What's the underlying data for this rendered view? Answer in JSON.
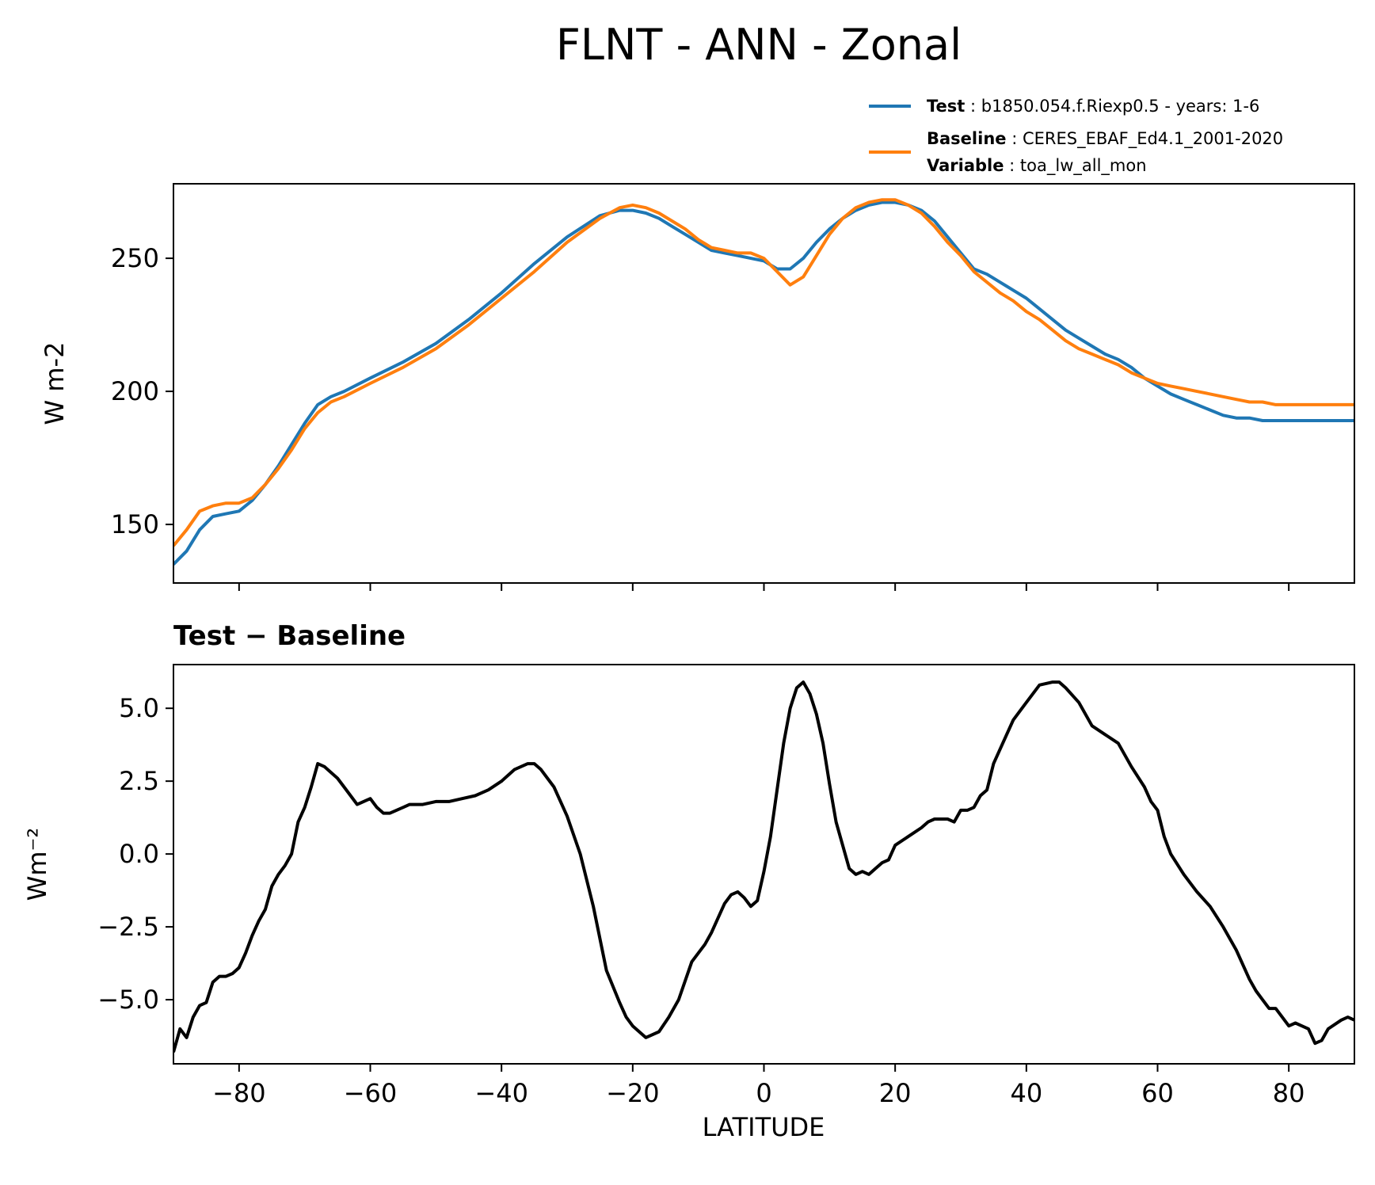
{
  "figure": {
    "title": "FLNT - ANN - Zonal"
  },
  "legend": {
    "test_key": "Test",
    "test_text": "b1850.054.f.Riexp0.5 - years: 1-6",
    "baseline_key": "Baseline",
    "baseline_text": "CERES_EBAF_Ed4.1_2001-2020",
    "variable_key": "Variable",
    "variable_text": "toa_lw_all_mon"
  },
  "chart_data": [
    {
      "type": "line",
      "panel": "top",
      "ylabel": "W m-2",
      "xlim": [
        -90,
        90
      ],
      "ylim": [
        128,
        278
      ],
      "yticks": [
        150,
        200,
        250
      ],
      "xticks": [
        -80,
        -60,
        -40,
        -20,
        0,
        20,
        40,
        60,
        80
      ],
      "legend_placement": "top-right, above axes",
      "series": [
        {
          "name": "Test",
          "color": "#1f77b4",
          "x": [
            -90,
            -88,
            -86,
            -84,
            -82,
            -80,
            -78,
            -76,
            -74,
            -72,
            -70,
            -68,
            -66,
            -64,
            -60,
            -55,
            -50,
            -45,
            -40,
            -35,
            -30,
            -25,
            -22,
            -20,
            -18,
            -16,
            -14,
            -12,
            -10,
            -8,
            -6,
            -4,
            -2,
            0,
            2,
            4,
            6,
            8,
            10,
            12,
            14,
            16,
            18,
            20,
            22,
            24,
            26,
            28,
            30,
            32,
            34,
            36,
            38,
            40,
            42,
            44,
            46,
            48,
            50,
            52,
            54,
            56,
            58,
            60,
            62,
            64,
            66,
            68,
            70,
            72,
            74,
            76,
            78,
            80,
            82,
            84,
            86,
            88,
            90
          ],
          "values": [
            135,
            140,
            148,
            153,
            154,
            155,
            159,
            165,
            172,
            180,
            188,
            195,
            198,
            200,
            205,
            211,
            218,
            227,
            237,
            248,
            258,
            266,
            268,
            268,
            267,
            265,
            262,
            259,
            256,
            253,
            252,
            251,
            250,
            249,
            246,
            246,
            250,
            256,
            261,
            265,
            268,
            270,
            271,
            271,
            270,
            268,
            264,
            258,
            252,
            246,
            244,
            241,
            238,
            235,
            231,
            227,
            223,
            220,
            217,
            214,
            212,
            209,
            205,
            202,
            199,
            197,
            195,
            193,
            191,
            190,
            190,
            189,
            189,
            189,
            189,
            189,
            189,
            189,
            189
          ]
        },
        {
          "name": "Baseline",
          "color": "#ff7f0e",
          "x": [
            -90,
            -88,
            -86,
            -84,
            -82,
            -80,
            -78,
            -76,
            -74,
            -72,
            -70,
            -68,
            -66,
            -64,
            -60,
            -55,
            -50,
            -45,
            -40,
            -35,
            -30,
            -25,
            -22,
            -20,
            -18,
            -16,
            -14,
            -12,
            -10,
            -8,
            -6,
            -4,
            -2,
            0,
            2,
            4,
            6,
            8,
            10,
            12,
            14,
            16,
            18,
            20,
            22,
            24,
            26,
            28,
            30,
            32,
            34,
            36,
            38,
            40,
            42,
            44,
            46,
            48,
            50,
            52,
            54,
            56,
            58,
            60,
            62,
            64,
            66,
            68,
            70,
            72,
            74,
            76,
            78,
            80,
            82,
            84,
            86,
            88,
            90
          ],
          "values": [
            142,
            148,
            155,
            157,
            158,
            158,
            160,
            165,
            171,
            178,
            186,
            192,
            196,
            198,
            203,
            209,
            216,
            225,
            235,
            245,
            256,
            265,
            269,
            270,
            269,
            267,
            264,
            261,
            257,
            254,
            253,
            252,
            252,
            250,
            245,
            240,
            243,
            251,
            259,
            265,
            269,
            271,
            272,
            272,
            270,
            267,
            262,
            256,
            251,
            245,
            241,
            237,
            234,
            230,
            227,
            223,
            219,
            216,
            214,
            212,
            210,
            207,
            205,
            203,
            202,
            201,
            200,
            199,
            198,
            197,
            196,
            196,
            195,
            195,
            195,
            195,
            195,
            195,
            195
          ]
        }
      ]
    },
    {
      "type": "line",
      "panel": "bottom",
      "title": "Test − Baseline",
      "xlabel": "LATITUDE",
      "ylabel": "Wm⁻²",
      "xlim": [
        -90,
        90
      ],
      "ylim": [
        -7.2,
        6.5
      ],
      "yticks": [
        -5.0,
        -2.5,
        0.0,
        2.5,
        5.0
      ],
      "ytick_labels": [
        "−5.0",
        "−2.5",
        "0.0",
        "2.5",
        "5.0"
      ],
      "xticks": [
        -80,
        -60,
        -40,
        -20,
        0,
        20,
        40,
        60,
        80
      ],
      "xtick_labels": [
        "−80",
        "−60",
        "−40",
        "−20",
        "0",
        "20",
        "40",
        "60",
        "80"
      ],
      "series": [
        {
          "color": "#000000",
          "x": [
            -90,
            -89,
            -88,
            -87,
            -86,
            -85,
            -84,
            -83,
            -82,
            -81,
            -80,
            -79,
            -78,
            -77,
            -76,
            -75,
            -74,
            -73,
            -72,
            -71,
            -70,
            -69,
            -68,
            -67,
            -66,
            -65,
            -64,
            -62,
            -60,
            -59,
            -58,
            -57,
            -56,
            -55,
            -54,
            -52,
            -50,
            -48,
            -46,
            -44,
            -42,
            -40,
            -38,
            -36,
            -35,
            -34,
            -32,
            -30,
            -28,
            -26,
            -24,
            -22,
            -21,
            -20,
            -18,
            -16,
            -14.5,
            -13,
            -11,
            -9,
            -8,
            -7,
            -6,
            -5,
            -4,
            -3,
            -2,
            -1,
            0,
            1,
            2,
            3,
            4,
            5,
            6,
            7,
            8,
            9,
            10,
            11,
            12,
            13,
            14,
            15,
            16,
            17,
            18,
            19,
            20,
            22,
            24,
            25,
            26,
            28,
            29,
            30,
            31,
            32,
            33,
            34,
            35,
            36,
            38,
            40,
            42,
            44,
            45,
            46,
            48,
            50,
            52,
            54,
            56,
            58,
            59,
            60,
            61,
            62,
            64,
            66,
            68,
            70,
            72,
            74,
            75,
            76,
            77,
            78,
            79,
            80,
            81,
            82,
            83,
            84,
            85,
            86,
            88,
            89,
            90
          ],
          "values": [
            -6.8,
            -6.0,
            -6.3,
            -5.6,
            -5.2,
            -5.1,
            -4.4,
            -4.2,
            -4.2,
            -4.1,
            -3.9,
            -3.4,
            -2.8,
            -2.3,
            -1.9,
            -1.1,
            -0.7,
            -0.4,
            0.0,
            1.1,
            1.6,
            2.3,
            3.1,
            3.0,
            2.8,
            2.6,
            2.3,
            1.7,
            1.9,
            1.6,
            1.4,
            1.4,
            1.5,
            1.6,
            1.7,
            1.7,
            1.8,
            1.8,
            1.9,
            2.0,
            2.2,
            2.5,
            2.9,
            3.1,
            3.1,
            2.9,
            2.3,
            1.3,
            0.0,
            -1.8,
            -4.0,
            -5.1,
            -5.6,
            -5.9,
            -6.3,
            -6.1,
            -5.6,
            -5.0,
            -3.7,
            -3.1,
            -2.7,
            -2.2,
            -1.7,
            -1.4,
            -1.3,
            -1.5,
            -1.8,
            -1.6,
            -0.6,
            0.6,
            2.2,
            3.8,
            5.0,
            5.7,
            5.9,
            5.5,
            4.8,
            3.8,
            2.4,
            1.1,
            0.3,
            -0.5,
            -0.7,
            -0.6,
            -0.7,
            -0.5,
            -0.3,
            -0.2,
            0.3,
            0.6,
            0.9,
            1.1,
            1.2,
            1.2,
            1.1,
            1.5,
            1.5,
            1.6,
            2.0,
            2.2,
            3.1,
            3.6,
            4.6,
            5.2,
            5.8,
            5.9,
            5.9,
            5.7,
            5.2,
            4.4,
            4.1,
            3.8,
            3.0,
            2.3,
            1.8,
            1.5,
            0.6,
            0.0,
            -0.7,
            -1.3,
            -1.8,
            -2.5,
            -3.3,
            -4.3,
            -4.7,
            -5.0,
            -5.3,
            -5.3,
            -5.6,
            -5.9,
            -5.8,
            -5.9,
            -6.0,
            -6.5,
            -6.4,
            -6.0,
            -5.7,
            -5.6,
            -5.7
          ]
        }
      ]
    }
  ]
}
